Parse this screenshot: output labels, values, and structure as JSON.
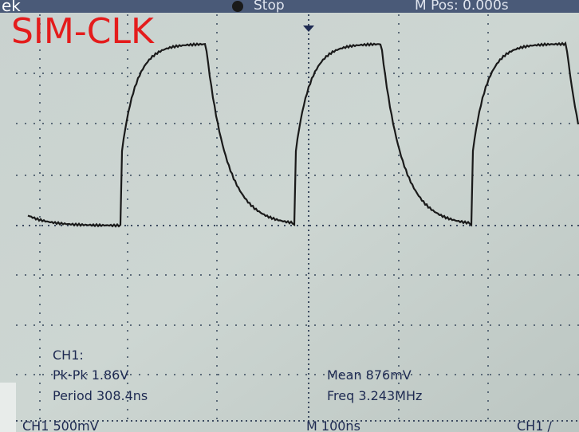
{
  "brand": "ek",
  "overlay_title": "SIM-CLK",
  "status": {
    "state": "Stop",
    "position": "M Pos: 0.000s"
  },
  "measurements": {
    "channel": "CH1:",
    "pk_pk": "Pk-Pk 1.86V",
    "period": "Period 308.4ns",
    "mean": "Mean 876mV",
    "frequency": "Freq 3.243MHz"
  },
  "footer": {
    "channel_scale": "CH1 500mV",
    "time_scale": "M 100ns",
    "trigger": "CH1 /"
  }
}
